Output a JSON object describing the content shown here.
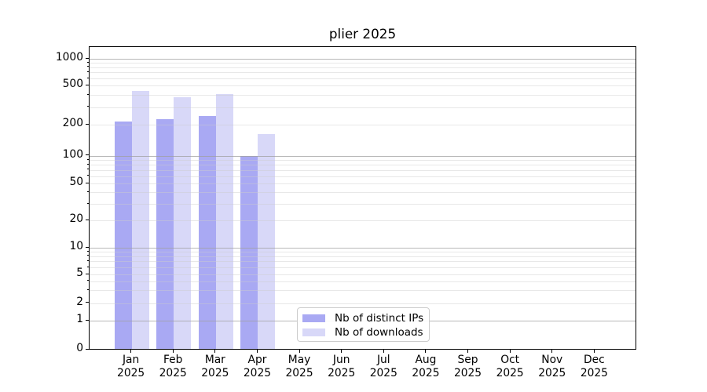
{
  "chart_data": {
    "type": "bar",
    "title": "plier 2025",
    "categories": [
      "Jan 2025",
      "Feb 2025",
      "Mar 2025",
      "Apr 2025",
      "May 2025",
      "Jun 2025",
      "Jul 2025",
      "Aug 2025",
      "Sep 2025",
      "Oct 2025",
      "Nov 2025",
      "Dec 2025"
    ],
    "series": [
      {
        "name": "Nb of distinct IPs",
        "color": "#a9a9f3",
        "values": [
          210,
          225,
          240,
          98,
          null,
          null,
          null,
          null,
          null,
          null,
          null,
          null
        ]
      },
      {
        "name": "Nb of downloads",
        "color": "#d8d8f8",
        "values": [
          430,
          370,
          400,
          160,
          null,
          null,
          null,
          null,
          null,
          null,
          null,
          null
        ]
      }
    ],
    "yscale": "log-with-zero-baseline",
    "yticks": [
      0,
      1,
      2,
      5,
      10,
      20,
      50,
      100,
      200,
      500,
      1000
    ],
    "ylim": [
      0,
      1350
    ],
    "grid": "horizontal major and minor gridlines, drawn above bars",
    "legend_position": "lower center inside plot"
  }
}
